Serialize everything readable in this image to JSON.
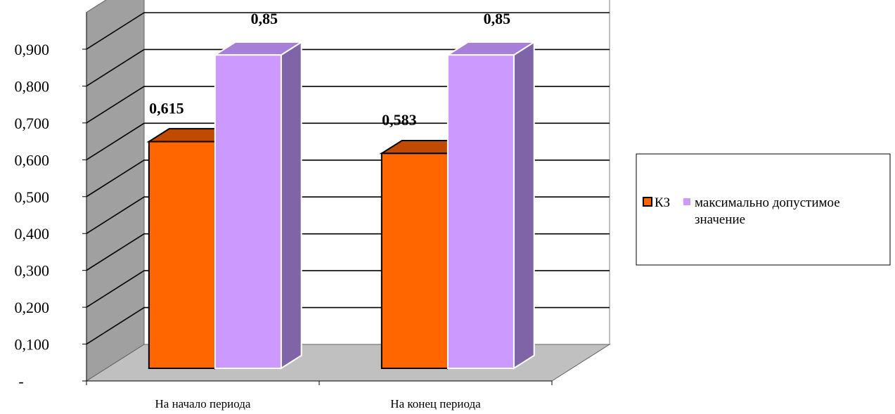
{
  "chart_data": {
    "type": "bar",
    "categories": [
      "На начало периода",
      "На конец периода"
    ],
    "series": [
      {
        "name": "КЗ",
        "values": [
          0.615,
          0.583
        ],
        "labels": [
          "0,615",
          "0,583"
        ],
        "color": "#FF6600",
        "top_color": "#C04A00"
      },
      {
        "name": "максимально допустимое значение",
        "values": [
          0.85,
          0.85
        ],
        "labels": [
          "0,85",
          "0,85"
        ],
        "color": "#CC99FF",
        "top_color": "#A680D8",
        "side_color": "#8064A8"
      }
    ],
    "y_ticks": [
      {
        "value": 0,
        "label": "-"
      },
      {
        "value": 0.1,
        "label": "0,100"
      },
      {
        "value": 0.2,
        "label": "0,200"
      },
      {
        "value": 0.3,
        "label": "0,300"
      },
      {
        "value": 0.4,
        "label": "0,400"
      },
      {
        "value": 0.5,
        "label": "0,500"
      },
      {
        "value": 0.6,
        "label": "0,600"
      },
      {
        "value": 0.7,
        "label": "0,700"
      },
      {
        "value": 0.8,
        "label": "0,800"
      },
      {
        "value": 0.9,
        "label": "0,900"
      }
    ],
    "ylim": [
      0,
      1.0
    ],
    "grid": true,
    "legend_position": "right",
    "wall_color": "#FFFFFF",
    "side_wall_color": "#A0A0A0",
    "floor_color": "#C0C0C0"
  }
}
